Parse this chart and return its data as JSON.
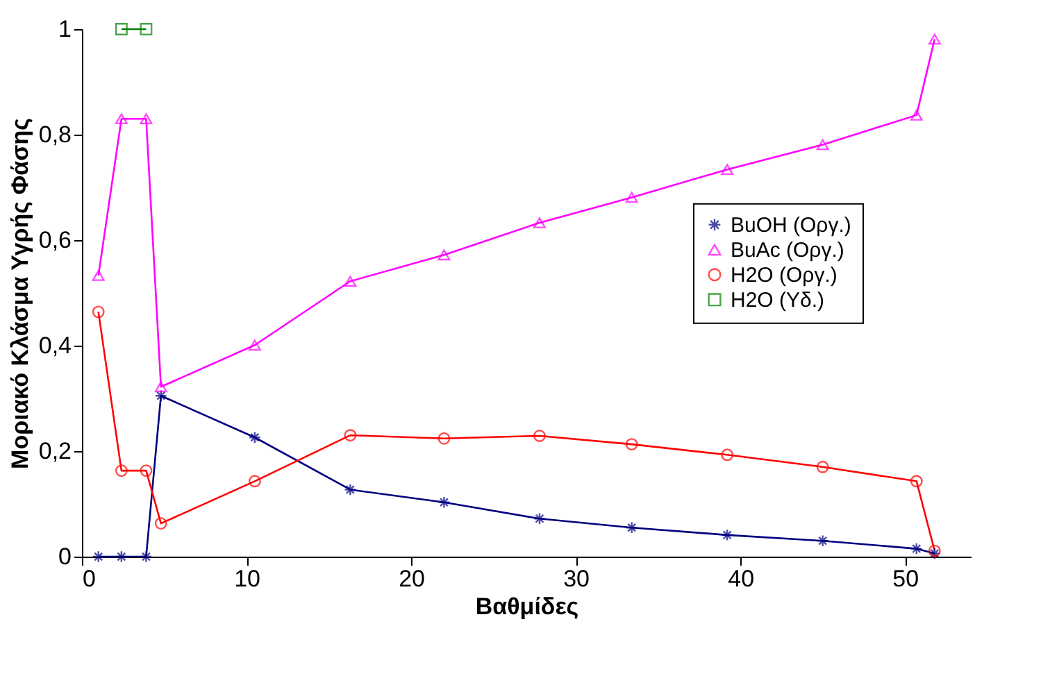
{
  "chart_data": {
    "type": "line",
    "xlabel": "Βαθμίδες",
    "ylabel": "Μοριακό Κλάσμα Υγρής Φάσης",
    "xlim": [
      0,
      54
    ],
    "xticks": [
      0,
      10,
      20,
      30,
      40,
      50
    ],
    "ylim": [
      0,
      1
    ],
    "yticks": [
      0,
      {
        "value": 0.2,
        "label": "0,2"
      },
      {
        "value": 0.4,
        "label": "0,4"
      },
      {
        "value": 0.6,
        "label": "0,6"
      },
      {
        "value": 0.8,
        "label": "0,8"
      },
      1
    ],
    "grid": false,
    "legend": "right",
    "line_style": "solid",
    "series": [
      {
        "name": "BuOH (Οργ.)",
        "color": "#000080",
        "marker": "cross",
        "x": [
          1.0,
          2.4,
          3.9,
          4.8,
          10.5,
          16.3,
          22.0,
          27.8,
          33.4,
          39.2,
          45.0,
          50.7,
          51.8
        ],
        "values": [
          0,
          0,
          0,
          0.305,
          0.226,
          0.127,
          0.103,
          0.072,
          0.055,
          0.041,
          0.03,
          0.015,
          0.006
        ]
      },
      {
        "name": "BuAc (Οργ.)",
        "color": "#ff00ff",
        "marker": "triangle",
        "x": [
          1.0,
          2.4,
          3.9,
          4.8,
          10.5,
          16.3,
          22.0,
          27.8,
          33.4,
          39.2,
          45.0,
          50.7,
          51.8
        ],
        "values": [
          0.533,
          0.83,
          0.83,
          0.322,
          0.401,
          0.522,
          0.572,
          0.633,
          0.681,
          0.734,
          0.781,
          0.837,
          0.981
        ]
      },
      {
        "name": "H2O (Οργ.)",
        "color": "#ff0000",
        "marker": "circle",
        "x": [
          1.0,
          2.4,
          3.9,
          4.8,
          10.5,
          16.3,
          22.0,
          27.8,
          33.4,
          39.2,
          45.0,
          50.7,
          51.8
        ],
        "values": [
          0.464,
          0.163,
          0.163,
          0.063,
          0.143,
          0.23,
          0.224,
          0.229,
          0.213,
          0.193,
          0.17,
          0.143,
          0.011
        ]
      },
      {
        "name": "H2O (Υδ.)",
        "color": "#008000",
        "marker": "square",
        "x": [
          2.4,
          3.9
        ],
        "values": [
          1.0,
          1.0
        ]
      }
    ]
  }
}
